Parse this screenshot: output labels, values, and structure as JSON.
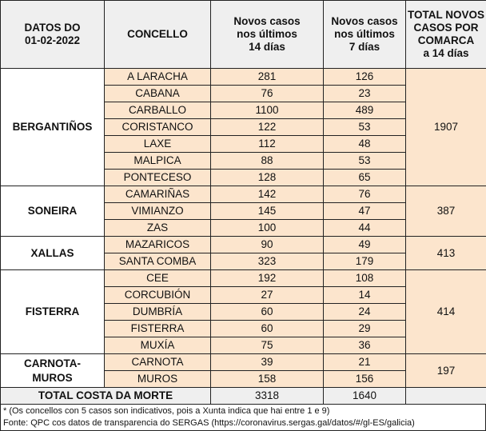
{
  "header": {
    "date_label": "DATOS DO\n01-02-2022",
    "concello": "CONCELLO",
    "cases14": "Novos casos\nnos últimos\n14 días",
    "cases7": "Novos casos\nnos últimos\n7 días",
    "total_comarca": "TOTAL NOVOS\nCASOS POR\nCOMARCA\na 14 días"
  },
  "groups": [
    {
      "comarca": "BERGANTIÑOS",
      "total": "1907",
      "rows": [
        {
          "concello": "A LARACHA",
          "d14": "281",
          "d7": "126"
        },
        {
          "concello": "CABANA",
          "d14": "76",
          "d7": "23"
        },
        {
          "concello": "CARBALLO",
          "d14": "1100",
          "d7": "489"
        },
        {
          "concello": "CORISTANCO",
          "d14": "122",
          "d7": "53"
        },
        {
          "concello": "LAXE",
          "d14": "112",
          "d7": "48"
        },
        {
          "concello": "MALPICA",
          "d14": "88",
          "d7": "53"
        },
        {
          "concello": "PONTECESO",
          "d14": "128",
          "d7": "65"
        }
      ]
    },
    {
      "comarca": "SONEIRA",
      "total": "387",
      "rows": [
        {
          "concello": "CAMARIÑAS",
          "d14": "142",
          "d7": "76"
        },
        {
          "concello": "VIMIANZO",
          "d14": "145",
          "d7": "47"
        },
        {
          "concello": "ZAS",
          "d14": "100",
          "d7": "44"
        }
      ]
    },
    {
      "comarca": "XALLAS",
      "total": "413",
      "rows": [
        {
          "concello": "MAZARICOS",
          "d14": "90",
          "d7": "49"
        },
        {
          "concello": "SANTA COMBA",
          "d14": "323",
          "d7": "179"
        }
      ]
    },
    {
      "comarca": "FISTERRA",
      "total": "414",
      "rows": [
        {
          "concello": "CEE",
          "d14": "192",
          "d7": "108"
        },
        {
          "concello": "CORCUBIÓN",
          "d14": "27",
          "d7": "14"
        },
        {
          "concello": "DUMBRÍA",
          "d14": "60",
          "d7": "24"
        },
        {
          "concello": "FISTERRA",
          "d14": "60",
          "d7": "29"
        },
        {
          "concello": "MUXÍA",
          "d14": "75",
          "d7": "36"
        }
      ]
    },
    {
      "comarca": "CARNOTA-\nMUROS",
      "total": "197",
      "rows": [
        {
          "concello": "CARNOTA",
          "d14": "39",
          "d7": "21"
        },
        {
          "concello": "MUROS",
          "d14": "158",
          "d7": "156"
        }
      ]
    }
  ],
  "total": {
    "label": "TOTAL COSTA DA MORTE",
    "d14": "3318",
    "d7": "1640"
  },
  "footer": {
    "note": "* (Os concellos con 5 casos son indicativos, pois a Xunta indica que hai entre 1 e 9)",
    "source": "Fonte: QPC cos datos de transparencia do SERGAS (https://coronavirus.sergas.gal/datos/#/gl-ES/galicia)"
  },
  "colors": {
    "header_bg": "#efefef",
    "highlight": "#fce5cd"
  }
}
